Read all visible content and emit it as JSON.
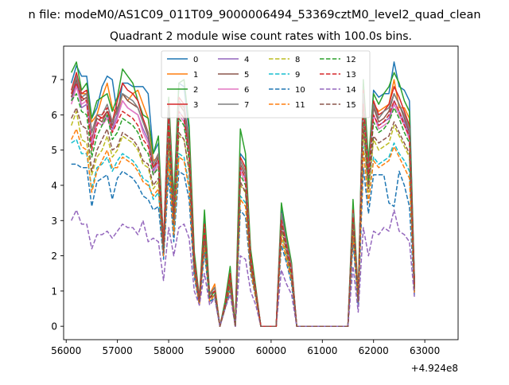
{
  "suptitle": "n file: modeM0/AS1C09_011T09_9000006494_53369cztM0_level2_quad_clean",
  "chart_data": {
    "type": "line",
    "title": "Quadrant 2 module wise count rates with 100.0s bins.",
    "xlabel": "",
    "ylabel": "",
    "x_offset_label": "+4.924e8",
    "xlim": [
      55950,
      63650
    ],
    "ylim": [
      -0.38,
      7.95
    ],
    "xticks": [
      56000,
      57000,
      58000,
      59000,
      60000,
      61000,
      62000,
      63000
    ],
    "yticks": [
      0,
      1,
      2,
      3,
      4,
      5,
      6,
      7
    ],
    "grid": false,
    "legend_position": "top-center",
    "legend_columns": 4,
    "series_x_start": 56100,
    "series_x_step": 100,
    "series": [
      {
        "name": "0",
        "color": "#1f77b4",
        "style": "solid",
        "values": [
          6.9,
          7.4,
          7.1,
          7.1,
          5.9,
          6.2,
          6.8,
          7.1,
          7.0,
          6.0,
          6.9,
          6.9,
          6.8,
          6.8,
          6.8,
          6.6,
          4.9,
          5.2,
          2.2,
          6.4,
          3.5,
          6.9,
          6.8,
          5.5,
          2.0,
          0.7,
          3.1,
          0.8,
          1.0,
          0.0,
          0.6,
          1.5,
          0.0,
          4.9,
          4.7,
          2.0,
          1.0,
          0.0,
          0.0,
          0.0,
          0.0,
          3.3,
          2.5,
          1.7,
          0.0,
          0.0,
          0.0,
          0.0,
          0.0,
          0.0,
          0.0,
          0.0,
          0.0,
          0.0,
          0.0,
          3.4,
          0.8,
          6.9,
          4.5,
          6.7,
          6.5,
          6.6,
          6.6,
          7.5,
          6.8,
          6.7,
          6.4,
          1.2
        ]
      },
      {
        "name": "1",
        "color": "#ff7f0e",
        "style": "solid",
        "values": [
          6.5,
          7.0,
          6.6,
          6.6,
          5.8,
          6.0,
          6.5,
          6.9,
          6.2,
          6.0,
          6.6,
          6.4,
          6.6,
          6.7,
          6.3,
          5.9,
          4.7,
          4.8,
          2.3,
          6.0,
          3.3,
          6.3,
          6.2,
          5.1,
          1.8,
          0.8,
          2.8,
          0.9,
          1.2,
          0.0,
          0.6,
          1.4,
          0.0,
          4.7,
          4.4,
          1.9,
          1.0,
          0.0,
          0.0,
          0.0,
          0.0,
          3.1,
          2.3,
          1.6,
          0.0,
          0.0,
          0.0,
          0.0,
          0.0,
          0.0,
          0.0,
          0.0,
          0.0,
          0.0,
          0.0,
          3.2,
          0.8,
          6.6,
          4.4,
          6.3,
          6.1,
          6.2,
          6.3,
          7.0,
          6.2,
          6.2,
          5.9,
          1.2
        ]
      },
      {
        "name": "2",
        "color": "#2ca02c",
        "style": "solid",
        "values": [
          7.2,
          7.5,
          6.7,
          6.9,
          5.9,
          6.4,
          6.5,
          6.6,
          6.1,
          6.5,
          7.3,
          7.1,
          6.9,
          6.4,
          6.0,
          5.9,
          4.9,
          5.4,
          2.3,
          6.5,
          3.6,
          6.9,
          7.0,
          5.7,
          2.1,
          0.8,
          3.3,
          0.9,
          1.1,
          0.0,
          0.7,
          1.7,
          0.0,
          5.6,
          4.9,
          2.2,
          1.1,
          0.0,
          0.0,
          0.0,
          0.0,
          3.5,
          2.6,
          1.8,
          0.0,
          0.0,
          0.0,
          0.0,
          0.0,
          0.0,
          0.0,
          0.0,
          0.0,
          0.0,
          0.0,
          3.6,
          0.9,
          7.0,
          4.7,
          6.6,
          6.3,
          6.6,
          6.8,
          7.2,
          6.9,
          6.4,
          6.1,
          1.3
        ]
      },
      {
        "name": "3",
        "color": "#d62728",
        "style": "solid",
        "values": [
          6.7,
          7.2,
          6.6,
          6.7,
          5.5,
          6.0,
          5.9,
          6.1,
          5.8,
          6.4,
          6.9,
          6.7,
          6.6,
          6.4,
          5.9,
          5.5,
          4.6,
          4.9,
          2.4,
          6.3,
          3.2,
          6.5,
          6.3,
          5.2,
          1.9,
          0.8,
          2.9,
          0.9,
          1.1,
          0.0,
          0.6,
          1.5,
          0.0,
          4.8,
          4.5,
          2.0,
          1.0,
          0.0,
          0.0,
          0.0,
          0.0,
          3.2,
          2.4,
          1.7,
          0.0,
          0.0,
          0.0,
          0.0,
          0.0,
          0.0,
          0.0,
          0.0,
          0.0,
          0.0,
          0.0,
          3.3,
          0.8,
          6.7,
          4.4,
          6.4,
          6.0,
          6.1,
          6.3,
          6.8,
          6.5,
          6.1,
          5.7,
          1.2
        ]
      },
      {
        "name": "4",
        "color": "#9467bd",
        "style": "solid",
        "values": [
          6.4,
          6.9,
          6.2,
          6.3,
          5.1,
          5.8,
          5.7,
          6.0,
          5.6,
          6.0,
          6.4,
          6.2,
          6.1,
          6.0,
          5.6,
          5.3,
          4.4,
          4.7,
          2.2,
          6.0,
          3.0,
          6.1,
          5.9,
          4.9,
          1.7,
          0.7,
          2.7,
          0.8,
          1.0,
          0.0,
          0.6,
          1.4,
          0.0,
          4.5,
          4.2,
          1.8,
          0.9,
          0.0,
          0.0,
          0.0,
          0.0,
          3.0,
          2.3,
          1.6,
          0.0,
          0.0,
          0.0,
          0.0,
          0.0,
          0.0,
          0.0,
          0.0,
          0.0,
          0.0,
          0.0,
          3.1,
          0.8,
          6.3,
          4.2,
          6.0,
          5.7,
          5.8,
          5.9,
          6.4,
          6.1,
          5.8,
          5.4,
          1.1
        ]
      },
      {
        "name": "5",
        "color": "#8c564b",
        "style": "solid",
        "values": [
          6.5,
          7.0,
          6.4,
          6.5,
          5.3,
          5.9,
          5.8,
          6.1,
          5.7,
          6.2,
          6.6,
          6.4,
          6.3,
          6.2,
          5.8,
          5.4,
          4.5,
          4.8,
          2.3,
          6.1,
          3.1,
          6.3,
          6.1,
          5.0,
          1.8,
          0.8,
          2.8,
          0.9,
          1.0,
          0.0,
          0.6,
          1.4,
          0.0,
          4.6,
          4.3,
          1.9,
          1.0,
          0.0,
          0.0,
          0.0,
          0.0,
          3.1,
          2.3,
          1.6,
          0.0,
          0.0,
          0.0,
          0.0,
          0.0,
          0.0,
          0.0,
          0.0,
          0.0,
          0.0,
          0.0,
          3.2,
          0.8,
          6.5,
          4.3,
          6.2,
          5.8,
          5.9,
          6.1,
          6.6,
          6.3,
          5.9,
          5.5,
          1.2
        ]
      },
      {
        "name": "6",
        "color": "#e377c2",
        "style": "solid",
        "values": [
          6.3,
          6.8,
          6.3,
          6.4,
          5.2,
          5.8,
          5.7,
          5.9,
          5.5,
          5.9,
          6.4,
          6.2,
          6.1,
          6.0,
          5.5,
          5.2,
          4.3,
          4.6,
          2.2,
          5.9,
          3.0,
          6.0,
          5.8,
          4.8,
          1.7,
          0.7,
          2.7,
          0.8,
          1.0,
          0.0,
          0.6,
          1.3,
          0.0,
          4.4,
          4.1,
          1.8,
          0.9,
          0.0,
          0.0,
          0.0,
          0.0,
          3.0,
          2.2,
          1.5,
          0.0,
          0.0,
          0.0,
          0.0,
          0.0,
          0.0,
          0.0,
          0.0,
          0.0,
          0.0,
          0.0,
          3.0,
          0.8,
          6.2,
          4.1,
          6.0,
          5.6,
          5.7,
          5.8,
          6.3,
          6.0,
          5.7,
          5.3,
          1.1
        ]
      },
      {
        "name": "7",
        "color": "#7f7f7f",
        "style": "solid",
        "values": [
          6.6,
          7.1,
          6.5,
          6.6,
          5.5,
          6.0,
          6.0,
          6.3,
          5.8,
          6.1,
          6.6,
          6.5,
          6.4,
          6.2,
          5.8,
          5.5,
          4.6,
          4.9,
          2.3,
          6.2,
          3.2,
          6.4,
          6.2,
          5.1,
          1.8,
          0.8,
          2.8,
          0.9,
          1.1,
          0.0,
          0.6,
          1.4,
          0.0,
          4.7,
          4.4,
          1.9,
          1.0,
          0.0,
          0.0,
          0.0,
          0.0,
          3.2,
          2.4,
          1.7,
          0.0,
          0.0,
          0.0,
          0.0,
          0.0,
          0.0,
          0.0,
          0.0,
          0.0,
          0.0,
          0.0,
          3.2,
          0.8,
          6.6,
          4.4,
          6.3,
          5.9,
          6.1,
          6.2,
          6.6,
          6.3,
          6.0,
          5.6,
          1.2
        ]
      },
      {
        "name": "8",
        "color": "#bcbd22",
        "style": "dashed",
        "values": [
          5.7,
          6.1,
          5.3,
          5.2,
          4.3,
          4.8,
          5.0,
          5.4,
          4.8,
          5.0,
          5.4,
          5.3,
          5.2,
          5.0,
          4.6,
          4.5,
          3.9,
          4.1,
          2.1,
          5.2,
          2.8,
          5.4,
          5.3,
          4.4,
          1.6,
          0.7,
          2.5,
          0.8,
          0.9,
          0.0,
          0.5,
          1.2,
          0.0,
          4.0,
          3.8,
          1.7,
          0.9,
          0.0,
          0.0,
          0.0,
          0.0,
          2.7,
          2.0,
          1.4,
          0.0,
          0.0,
          0.0,
          0.0,
          0.0,
          0.0,
          0.0,
          0.0,
          0.0,
          0.0,
          0.0,
          2.8,
          0.7,
          5.6,
          3.8,
          5.3,
          5.0,
          5.1,
          5.2,
          5.7,
          5.4,
          5.1,
          4.8,
          1.0
        ]
      },
      {
        "name": "9",
        "color": "#17becf",
        "style": "dashed",
        "values": [
          5.2,
          5.3,
          4.9,
          4.9,
          3.9,
          4.5,
          4.6,
          4.8,
          4.4,
          4.7,
          4.9,
          4.8,
          4.7,
          4.5,
          4.2,
          4.1,
          3.6,
          3.8,
          2.0,
          4.8,
          2.6,
          4.9,
          4.8,
          4.0,
          1.5,
          0.6,
          2.3,
          0.7,
          0.9,
          0.0,
          0.5,
          1.1,
          0.0,
          3.7,
          3.5,
          1.6,
          0.8,
          0.0,
          0.0,
          0.0,
          0.0,
          2.5,
          1.9,
          1.3,
          0.0,
          0.0,
          0.0,
          0.0,
          0.0,
          0.0,
          0.0,
          0.0,
          0.0,
          0.0,
          0.0,
          2.6,
          0.7,
          5.1,
          3.5,
          4.8,
          4.6,
          4.7,
          4.8,
          5.2,
          4.9,
          4.7,
          4.4,
          0.9
        ]
      },
      {
        "name": "10",
        "color": "#1f77b4",
        "style": "dashed",
        "values": [
          4.6,
          4.6,
          4.5,
          4.5,
          3.4,
          4.1,
          4.2,
          4.3,
          3.6,
          4.2,
          4.4,
          4.3,
          4.2,
          4.0,
          3.7,
          3.6,
          3.3,
          3.4,
          1.9,
          4.3,
          2.4,
          4.4,
          4.3,
          3.6,
          1.4,
          0.6,
          2.1,
          0.7,
          0.8,
          0.0,
          0.5,
          1.0,
          0.0,
          3.3,
          3.1,
          1.5,
          0.8,
          0.0,
          0.0,
          0.0,
          0.0,
          2.3,
          1.8,
          1.2,
          0.0,
          0.0,
          0.0,
          0.0,
          0.0,
          0.0,
          0.0,
          0.0,
          0.0,
          0.0,
          0.0,
          2.4,
          0.6,
          4.5,
          3.2,
          4.3,
          4.3,
          4.3,
          3.5,
          3.4,
          4.4,
          4.0,
          3.4,
          0.9
        ]
      },
      {
        "name": "11",
        "color": "#ff7f0e",
        "style": "dashed",
        "values": [
          5.3,
          5.6,
          5.1,
          5.0,
          3.8,
          4.4,
          4.7,
          5.0,
          4.5,
          4.5,
          4.8,
          4.7,
          4.6,
          4.4,
          4.1,
          4.0,
          3.7,
          3.9,
          2.0,
          4.7,
          2.6,
          4.8,
          4.7,
          3.9,
          1.5,
          0.6,
          2.3,
          0.7,
          0.9,
          0.0,
          0.5,
          1.1,
          0.0,
          3.6,
          3.4,
          1.6,
          0.8,
          0.0,
          0.0,
          0.0,
          0.0,
          2.5,
          1.9,
          1.3,
          0.0,
          0.0,
          0.0,
          0.0,
          0.0,
          0.0,
          0.0,
          0.0,
          0.0,
          0.0,
          0.0,
          2.6,
          0.7,
          5.0,
          3.5,
          4.7,
          4.5,
          4.6,
          4.7,
          5.1,
          4.8,
          4.5,
          4.2,
          0.9
        ]
      },
      {
        "name": "12",
        "color": "#2ca02c",
        "style": "dashed",
        "values": [
          6.4,
          6.6,
          6.1,
          6.0,
          4.8,
          5.4,
          5.7,
          6.0,
          5.3,
          5.5,
          5.9,
          5.8,
          5.7,
          5.5,
          5.1,
          4.9,
          4.3,
          4.5,
          2.2,
          5.7,
          3.0,
          5.9,
          5.7,
          4.7,
          1.7,
          0.7,
          2.7,
          0.8,
          1.0,
          0.0,
          0.6,
          1.3,
          0.0,
          4.3,
          4.0,
          1.8,
          0.9,
          0.0,
          0.0,
          0.0,
          0.0,
          2.9,
          2.2,
          1.5,
          0.0,
          0.0,
          0.0,
          0.0,
          0.0,
          0.0,
          0.0,
          0.0,
          0.0,
          0.0,
          0.0,
          3.0,
          0.7,
          6.1,
          4.1,
          5.8,
          5.5,
          5.6,
          5.8,
          6.2,
          5.9,
          5.5,
          5.2,
          1.1
        ]
      },
      {
        "name": "13",
        "color": "#d62728",
        "style": "dashed",
        "values": [
          6.6,
          6.9,
          6.5,
          6.4,
          5.0,
          5.7,
          6.0,
          6.2,
          5.5,
          5.8,
          6.1,
          6.0,
          5.9,
          5.7,
          5.3,
          5.1,
          4.5,
          4.7,
          2.3,
          5.9,
          3.1,
          6.1,
          5.9,
          4.9,
          1.8,
          0.7,
          2.8,
          0.8,
          1.0,
          0.0,
          0.6,
          1.4,
          0.0,
          4.5,
          4.2,
          1.9,
          1.0,
          0.0,
          0.0,
          0.0,
          0.0,
          3.0,
          2.3,
          1.6,
          0.0,
          0.0,
          0.0,
          0.0,
          0.0,
          0.0,
          0.0,
          0.0,
          0.0,
          0.0,
          0.0,
          3.1,
          0.8,
          6.3,
          4.3,
          6.0,
          5.7,
          5.8,
          6.0,
          6.4,
          6.1,
          5.7,
          5.4,
          1.1
        ]
      },
      {
        "name": "14",
        "color": "#9467bd",
        "style": "dashed",
        "values": [
          3.0,
          3.3,
          2.9,
          2.9,
          2.2,
          2.6,
          2.6,
          2.7,
          2.5,
          2.7,
          2.9,
          2.8,
          2.8,
          2.6,
          3.0,
          2.4,
          2.5,
          2.4,
          1.3,
          2.8,
          2.0,
          2.8,
          2.9,
          2.5,
          1.0,
          0.6,
          1.5,
          0.6,
          0.8,
          0.0,
          0.5,
          0.9,
          0.0,
          2.0,
          1.9,
          1.0,
          0.6,
          0.0,
          0.0,
          0.0,
          0.0,
          1.6,
          1.2,
          0.9,
          0.0,
          0.0,
          0.0,
          0.0,
          0.0,
          0.0,
          0.0,
          0.0,
          0.0,
          0.0,
          0.0,
          1.7,
          0.4,
          2.8,
          2.0,
          2.7,
          2.6,
          2.8,
          2.7,
          3.3,
          2.7,
          2.6,
          2.4,
          0.8
        ]
      },
      {
        "name": "15",
        "color": "#8c564b",
        "style": "dashed",
        "values": [
          5.9,
          6.2,
          5.7,
          5.6,
          4.4,
          5.0,
          5.3,
          5.6,
          5.0,
          5.1,
          5.5,
          5.4,
          5.3,
          5.1,
          4.7,
          4.6,
          4.0,
          4.2,
          2.1,
          5.3,
          2.9,
          5.5,
          5.3,
          4.4,
          1.6,
          0.7,
          2.5,
          0.8,
          0.9,
          0.0,
          0.5,
          1.2,
          0.0,
          4.1,
          3.8,
          1.7,
          0.9,
          0.0,
          0.0,
          0.0,
          0.0,
          2.8,
          2.1,
          1.4,
          0.0,
          0.0,
          0.0,
          0.0,
          0.0,
          0.0,
          0.0,
          0.0,
          0.0,
          0.0,
          0.0,
          2.9,
          0.7,
          5.7,
          3.9,
          5.4,
          5.2,
          5.3,
          5.4,
          5.8,
          5.5,
          5.2,
          4.9,
          1.0
        ]
      }
    ]
  }
}
